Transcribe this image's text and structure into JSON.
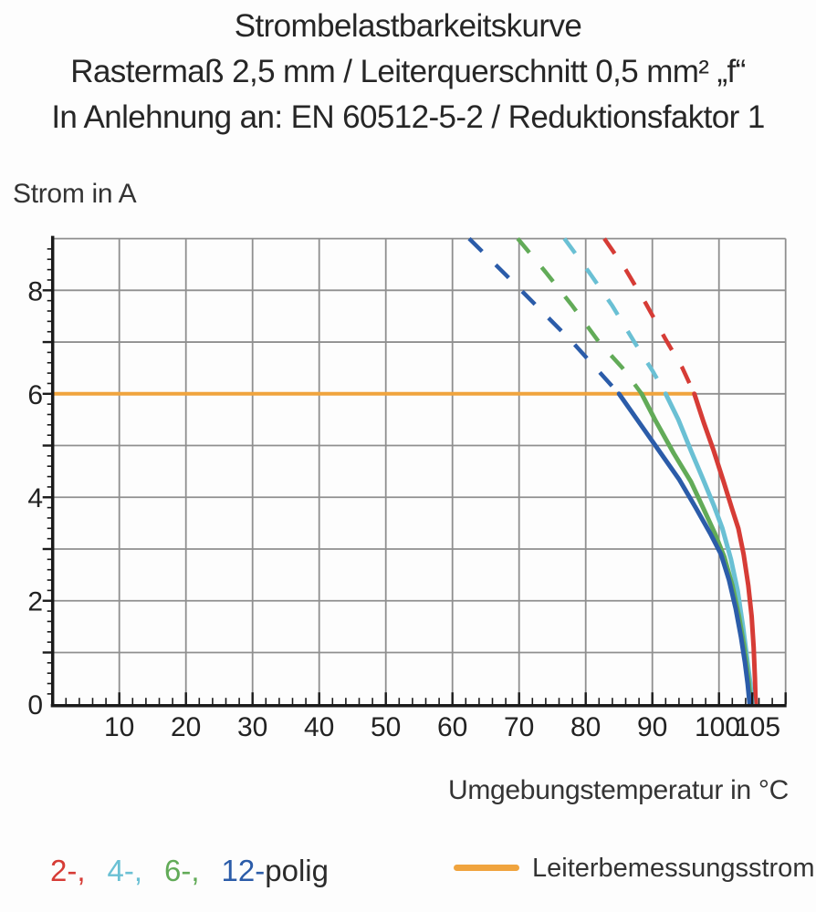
{
  "header": {
    "line1": "Strombelastbarkeitskurve",
    "line2": "Rastermaß 2,5 mm / Leiterquerschnitt 0,5 mm² „f“",
    "line3": "In Anlehnung an: EN 60512-5-2 / Reduktionsfaktor 1"
  },
  "axis_labels": {
    "y": "Strom in A",
    "x": "Umgebungstemperatur in °C"
  },
  "legend": {
    "poles": {
      "items": [
        {
          "label": "2-,",
          "color": "#d63c36"
        },
        {
          "label": "4-,",
          "color": "#6ac0d4"
        },
        {
          "label": "6-,",
          "color": "#62ab58"
        },
        {
          "label": "12-",
          "color": "#2b5ca9"
        }
      ],
      "suffix": "polig"
    },
    "rated": {
      "label": "Leiterbemessungsstrom",
      "color": "#f0a43e"
    }
  },
  "chart_data": {
    "type": "line",
    "title": "Strombelastbarkeitskurve",
    "xlabel": "Umgebungstemperatur in °C",
    "ylabel": "Strom in A",
    "xlim": [
      0,
      110
    ],
    "ylim": [
      0,
      9
    ],
    "x_ticks": [
      10,
      20,
      30,
      40,
      50,
      60,
      70,
      80,
      90,
      100,
      105
    ],
    "y_ticks": [
      0,
      2,
      4,
      6,
      8
    ],
    "grid": {
      "x_step": 10,
      "y_step": 1,
      "color": "#8f8f8f"
    },
    "x_minor_step": 2,
    "y_minor_step": 0.2,
    "rated_current_line": {
      "label": "Leiterbemessungsstrom",
      "y": 6,
      "x_from": 0,
      "x_to": 96.3,
      "color": "#f0a43e"
    },
    "dashed_above_A": 6,
    "series": [
      {
        "name": "2-polig",
        "color": "#d63c36",
        "dashed": [
          [
            82.8,
            9
          ],
          [
            86,
            8.4
          ],
          [
            89,
            7.75
          ],
          [
            92,
            7.05
          ],
          [
            94.5,
            6.5
          ],
          [
            96.3,
            6
          ]
        ],
        "solid": [
          [
            96.3,
            6
          ],
          [
            97.7,
            5.45
          ],
          [
            99.2,
            4.9
          ],
          [
            100.7,
            4.3
          ],
          [
            101.9,
            3.8
          ],
          [
            102.9,
            3.4
          ],
          [
            103.7,
            2.9
          ],
          [
            104.4,
            2.3
          ],
          [
            104.9,
            1.7
          ],
          [
            105.2,
            1.1
          ],
          [
            105.4,
            0.5
          ],
          [
            105.5,
            0
          ]
        ]
      },
      {
        "name": "4-polig",
        "color": "#6ac0d4",
        "dashed": [
          [
            76.8,
            9
          ],
          [
            80.5,
            8.35
          ],
          [
            84,
            7.7
          ],
          [
            87.3,
            7.0
          ],
          [
            90,
            6.45
          ],
          [
            92,
            6
          ]
        ],
        "solid": [
          [
            92,
            6
          ],
          [
            93.9,
            5.5
          ],
          [
            95.8,
            4.9
          ],
          [
            97.6,
            4.35
          ],
          [
            99.2,
            3.85
          ],
          [
            100.5,
            3.4
          ],
          [
            101.8,
            2.8
          ],
          [
            102.8,
            2.2
          ],
          [
            103.6,
            1.5
          ],
          [
            104.2,
            0.9
          ],
          [
            104.7,
            0.4
          ],
          [
            105,
            0
          ]
        ]
      },
      {
        "name": "6-polig",
        "color": "#62ab58",
        "dashed": [
          [
            69.8,
            9
          ],
          [
            74,
            8.35
          ],
          [
            78,
            7.7
          ],
          [
            82,
            7.0
          ],
          [
            85.5,
            6.5
          ],
          [
            88.4,
            6
          ]
        ],
        "solid": [
          [
            88.4,
            6
          ],
          [
            90.4,
            5.5
          ],
          [
            93.2,
            4.85
          ],
          [
            95.8,
            4.3
          ],
          [
            97.6,
            3.8
          ],
          [
            99.4,
            3.3
          ],
          [
            100.8,
            2.85
          ],
          [
            102,
            2.3
          ],
          [
            103,
            1.7
          ],
          [
            103.8,
            1.1
          ],
          [
            104.4,
            0.5
          ],
          [
            104.8,
            0
          ]
        ]
      },
      {
        "name": "12-polig",
        "color": "#2b5ca9",
        "dashed": [
          [
            62.5,
            9
          ],
          [
            68,
            8.3
          ],
          [
            73,
            7.65
          ],
          [
            78,
            7.0
          ],
          [
            81.5,
            6.5
          ],
          [
            85,
            6
          ]
        ],
        "solid": [
          [
            85,
            6
          ],
          [
            88,
            5.45
          ],
          [
            91,
            4.9
          ],
          [
            94,
            4.35
          ],
          [
            96.5,
            3.8
          ],
          [
            98.7,
            3.3
          ],
          [
            100.3,
            2.9
          ],
          [
            101.5,
            2.4
          ],
          [
            102.5,
            1.85
          ],
          [
            103.3,
            1.3
          ],
          [
            103.9,
            0.8
          ],
          [
            104.3,
            0.4
          ],
          [
            104.6,
            0
          ]
        ]
      }
    ]
  }
}
